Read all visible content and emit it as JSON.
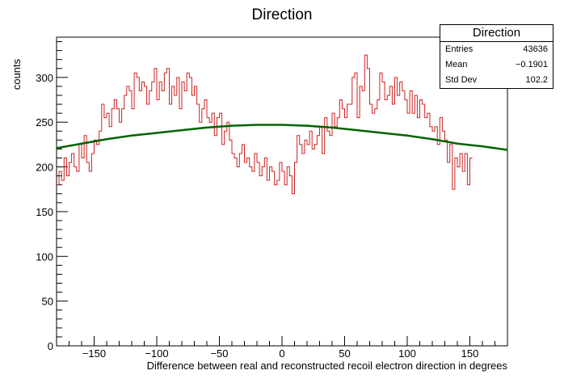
{
  "chart_data": {
    "type": "histogram",
    "title": "Direction",
    "xlabel": "Difference between real and reconstructed recoil electron direction in degrees",
    "ylabel": "counts",
    "xlim": [
      -180,
      180
    ],
    "ylim": [
      0,
      345
    ],
    "bin_width": 2,
    "x_ticks": [
      -150,
      -100,
      -50,
      0,
      50,
      100,
      150
    ],
    "y_ticks": [
      0,
      50,
      100,
      150,
      200,
      250,
      300
    ],
    "hist_color": "#cc2222",
    "fit_color": "#006400",
    "histogram_values": [
      180,
      195,
      185,
      210,
      190,
      205,
      215,
      200,
      195,
      225,
      210,
      235,
      205,
      195,
      215,
      230,
      225,
      240,
      270,
      255,
      260,
      245,
      265,
      275,
      265,
      250,
      265,
      280,
      290,
      285,
      265,
      305,
      300,
      285,
      295,
      290,
      270,
      285,
      295,
      310,
      275,
      295,
      285,
      305,
      310,
      270,
      290,
      280,
      300,
      265,
      295,
      285,
      305,
      300,
      280,
      290,
      270,
      250,
      265,
      275,
      255,
      250,
      260,
      235,
      255,
      260,
      225,
      240,
      250,
      230,
      215,
      210,
      200,
      215,
      225,
      205,
      210,
      200,
      195,
      215,
      205,
      190,
      200,
      210,
      185,
      200,
      195,
      180,
      185,
      205,
      195,
      180,
      200,
      190,
      170,
      205,
      235,
      225,
      215,
      230,
      225,
      240,
      220,
      225,
      235,
      245,
      215,
      255,
      240,
      235,
      260,
      245,
      255,
      275,
      265,
      255,
      270,
      270,
      300,
      305,
      255,
      290,
      285,
      325,
      310,
      270,
      260,
      265,
      275,
      305,
      295,
      275,
      280,
      290,
      270,
      300,
      280,
      295,
      285,
      275,
      260,
      285,
      260,
      280,
      255,
      275,
      270,
      255,
      260,
      245,
      240,
      245,
      225,
      255,
      240,
      230,
      205,
      225,
      175,
      210,
      200,
      215,
      195,
      215,
      180,
      210
    ],
    "fit_curve": {
      "x": [
        -180,
        -160,
        -140,
        -120,
        -100,
        -80,
        -60,
        -40,
        -20,
        0,
        20,
        40,
        60,
        80,
        100,
        120,
        140,
        160,
        180
      ],
      "y": [
        221,
        226,
        231,
        235,
        238,
        241,
        244,
        246,
        247,
        247,
        246,
        244,
        241,
        238,
        235,
        231,
        226,
        223,
        219
      ]
    }
  },
  "stats_box": {
    "title": "Direction",
    "rows": [
      {
        "label": "Entries",
        "value": "43636"
      },
      {
        "label": "Mean",
        "value": "−0.1901"
      },
      {
        "label": "Std Dev",
        "value": "102.2"
      }
    ]
  }
}
